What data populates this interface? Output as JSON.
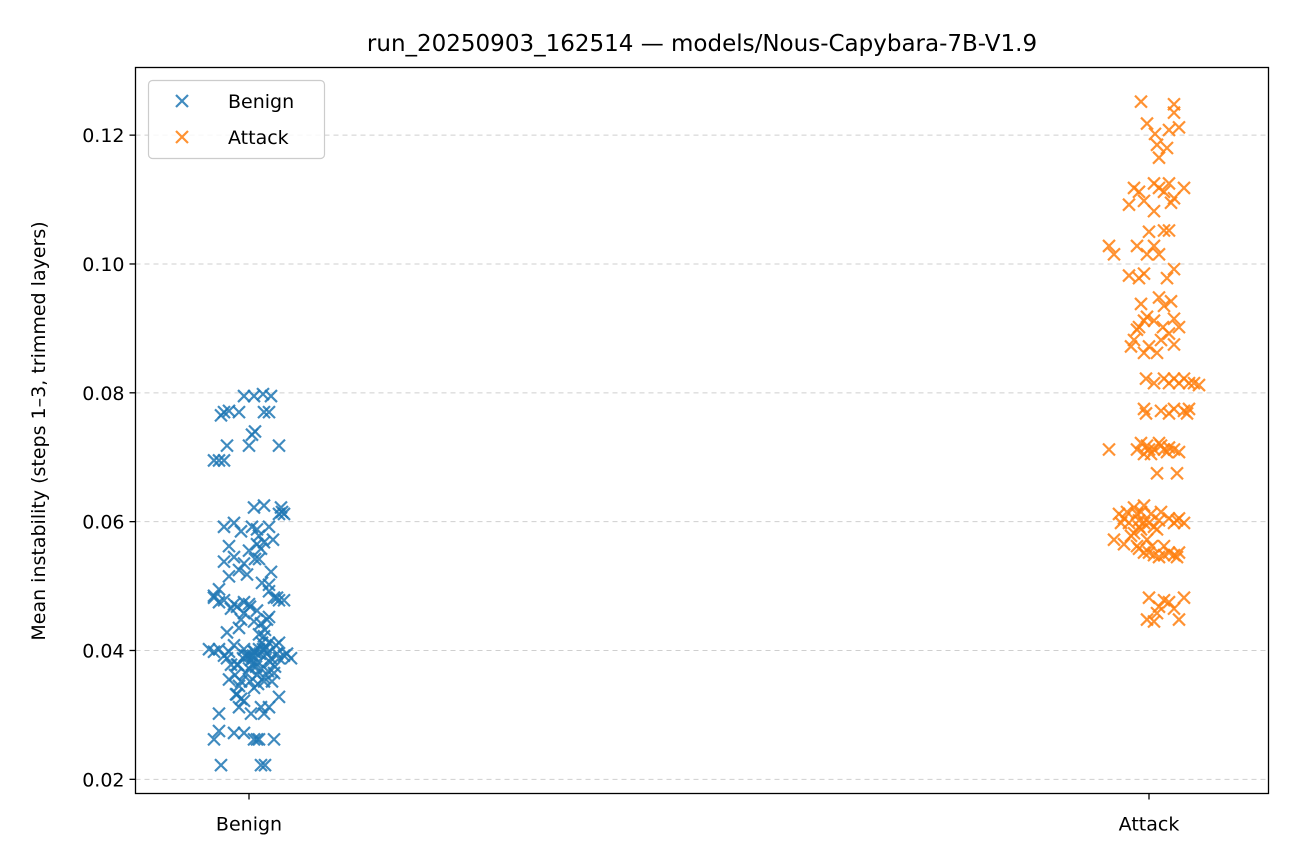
{
  "chart_data": {
    "type": "scatter",
    "title": "run_20250903_162514 — models/Nous-Capybara-7B-V1.9",
    "xlabel": "",
    "ylabel": "Mean instability (steps 1–3, trimmed layers)",
    "ylim": [
      0.0178,
      0.1305
    ],
    "yticks": [
      "0.02",
      "0.04",
      "0.06",
      "0.08",
      "0.10",
      "0.12"
    ],
    "categories": [
      "Benign",
      "Attack"
    ],
    "grid": "horizontal dashed",
    "legend_position": "top-left",
    "marker": "x",
    "series": [
      {
        "name": "Benign",
        "category_index": 0,
        "color": "#1f77b4",
        "points": [
          [
            0.05,
            0.0398
          ],
          [
            -0.12,
            0.0378
          ],
          [
            0.02,
            0.0385
          ],
          [
            0.18,
            0.0395
          ],
          [
            -0.05,
            0.0402
          ],
          [
            0.22,
            0.0388
          ],
          [
            0.08,
            0.0362
          ],
          [
            -0.15,
            0.0408
          ],
          [
            0.12,
            0.0372
          ],
          [
            -0.02,
            0.0392
          ],
          [
            0.28,
            0.0395
          ],
          [
            -0.2,
            0.0398
          ],
          [
            0.15,
            0.0352
          ],
          [
            0.0,
            0.0372
          ],
          [
            0.1,
            0.0402
          ],
          [
            -0.08,
            0.0352
          ],
          [
            0.2,
            0.0412
          ],
          [
            -0.25,
            0.0392
          ],
          [
            0.3,
            0.0388
          ],
          [
            0.03,
            0.0378
          ],
          [
            -0.1,
            0.0345
          ],
          [
            0.25,
            0.0365
          ],
          [
            -0.3,
            0.0402
          ],
          [
            0.07,
            0.0375
          ],
          [
            0.14,
            0.0402
          ],
          [
            0.01,
            0.0352
          ],
          [
            -0.18,
            0.0378
          ],
          [
            0.19,
            0.0368
          ],
          [
            -0.04,
            0.0392
          ],
          [
            0.09,
            0.0382
          ],
          [
            0.35,
            0.0392
          ],
          [
            -0.22,
            0.0388
          ],
          [
            0.16,
            0.0402
          ],
          [
            0.04,
            0.0392
          ],
          [
            0.23,
            0.0352
          ],
          [
            -0.14,
            0.0362
          ],
          [
            0.11,
            0.0395
          ],
          [
            -0.06,
            0.0388
          ],
          [
            0.26,
            0.0375
          ],
          [
            0.06,
            0.0398
          ],
          [
            -0.4,
            0.0402
          ],
          [
            0.42,
            0.0388
          ],
          [
            0.38,
            0.0395
          ],
          [
            -0.35,
            0.0398
          ],
          [
            0.13,
            0.0412
          ],
          [
            -0.03,
            0.0365
          ],
          [
            0.21,
            0.0382
          ],
          [
            0.0,
            0.0392
          ],
          [
            -0.13,
            0.0332
          ],
          [
            0.17,
            0.0405
          ],
          [
            0.05,
            0.0342
          ],
          [
            -0.08,
            0.0325
          ],
          [
            0.15,
            0.0358
          ],
          [
            0.3,
            0.0412
          ],
          [
            -0.2,
            0.0355
          ],
          [
            0.27,
            0.0408
          ],
          [
            0.09,
            0.0348
          ],
          [
            -0.11,
            0.0378
          ],
          [
            -0.15,
            0.0472
          ],
          [
            -0.05,
            0.0458
          ],
          [
            0.05,
            0.0445
          ],
          [
            0.15,
            0.0422
          ],
          [
            -0.1,
            0.0435
          ],
          [
            0.18,
            0.0448
          ],
          [
            0.08,
            0.0462
          ],
          [
            -0.25,
            0.0478
          ],
          [
            0.25,
            0.0482
          ],
          [
            0.0,
            0.0472
          ],
          [
            -0.08,
            0.0448
          ],
          [
            0.12,
            0.0442
          ],
          [
            -0.18,
            0.0465
          ],
          [
            0.2,
            0.0452
          ],
          [
            0.35,
            0.0478
          ],
          [
            0.01,
            0.0468
          ],
          [
            0.1,
            0.0425
          ],
          [
            -0.22,
            0.0428
          ],
          [
            -0.3,
            0.0475
          ],
          [
            0.28,
            0.0482
          ],
          [
            -0.05,
            0.0475
          ],
          [
            0.16,
            0.0432
          ],
          [
            -0.35,
            0.0482
          ],
          [
            -0.12,
            0.0468
          ],
          [
            0.1,
            0.0542
          ],
          [
            0.0,
            0.0555
          ],
          [
            -0.1,
            0.0525
          ],
          [
            0.22,
            0.0522
          ],
          [
            0.06,
            0.0542
          ],
          [
            0.15,
            0.0568
          ],
          [
            -0.05,
            0.0535
          ],
          [
            0.2,
            0.0502
          ],
          [
            -0.15,
            0.0545
          ],
          [
            0.1,
            0.0578
          ],
          [
            -0.3,
            0.0495
          ],
          [
            -0.2,
            0.0515
          ],
          [
            -0.25,
            0.0538
          ],
          [
            -0.35,
            0.0485
          ],
          [
            0.12,
            0.0558
          ],
          [
            0.08,
            0.0565
          ],
          [
            -0.08,
            0.0585
          ],
          [
            0.03,
            0.0592
          ],
          [
            0.3,
            0.0612
          ],
          [
            0.33,
            0.0615
          ],
          [
            0.15,
            0.0625
          ],
          [
            0.05,
            0.0622
          ],
          [
            0.2,
            0.0592
          ],
          [
            -0.25,
            0.0592
          ],
          [
            -0.15,
            0.0598
          ],
          [
            0.32,
            0.0622
          ],
          [
            -0.2,
            0.0562
          ],
          [
            0.13,
            0.0505
          ],
          [
            0.24,
            0.0572
          ],
          [
            -0.02,
            0.0518
          ],
          [
            0.3,
            0.0478
          ],
          [
            0.2,
            0.0492
          ],
          [
            0.35,
            0.0612
          ],
          [
            0.08,
            0.0588
          ],
          [
            -0.1,
            0.0312
          ],
          [
            0.02,
            0.0302
          ],
          [
            0.12,
            0.0312
          ],
          [
            -0.05,
            0.0272
          ],
          [
            0.08,
            0.0262
          ],
          [
            0.25,
            0.0262
          ],
          [
            -0.15,
            0.0272
          ],
          [
            -0.35,
            0.0262
          ],
          [
            -0.3,
            0.0275
          ],
          [
            0.2,
            0.0312
          ],
          [
            0.15,
            0.0302
          ],
          [
            0.3,
            0.0328
          ],
          [
            0.1,
            0.0262
          ],
          [
            -0.05,
            0.0322
          ],
          [
            0.12,
            0.0222
          ],
          [
            -0.3,
            0.0302
          ],
          [
            0.16,
            0.0222
          ],
          [
            -0.28,
            0.0222
          ],
          [
            0.05,
            0.0262
          ],
          [
            -0.12,
            0.0332
          ],
          [
            -0.3,
            0.0695
          ],
          [
            -0.35,
            0.0695
          ],
          [
            -0.25,
            0.0695
          ],
          [
            -0.22,
            0.0718
          ],
          [
            0.0,
            0.0718
          ],
          [
            0.03,
            0.0735
          ],
          [
            0.06,
            0.074
          ],
          [
            0.3,
            0.0718
          ],
          [
            -0.25,
            0.077
          ],
          [
            -0.1,
            0.077
          ],
          [
            -0.28,
            0.0765
          ],
          [
            0.15,
            0.077
          ],
          [
            0.2,
            0.077
          ],
          [
            0.22,
            0.0795
          ],
          [
            -0.05,
            0.0795
          ],
          [
            0.05,
            0.0795
          ],
          [
            0.14,
            0.0798
          ],
          [
            -0.2,
            0.0772
          ]
        ]
      },
      {
        "name": "Attack",
        "category_index": 1,
        "color": "#ff7f0e",
        "points": [
          [
            -0.08,
            0.1252
          ],
          [
            0.25,
            0.1248
          ],
          [
            0.25,
            0.1235
          ],
          [
            0.3,
            0.1212
          ],
          [
            0.2,
            0.1208
          ],
          [
            0.18,
            0.118
          ],
          [
            0.1,
            0.1165
          ],
          [
            0.08,
            0.1185
          ],
          [
            0.06,
            0.1202
          ],
          [
            -0.02,
            0.1218
          ],
          [
            -0.15,
            0.1118
          ],
          [
            0.25,
            0.1102
          ],
          [
            0.35,
            0.1118
          ],
          [
            0.1,
            0.1118
          ],
          [
            0.05,
            0.1125
          ],
          [
            0.15,
            0.1112
          ],
          [
            0.2,
            0.1125
          ],
          [
            0.22,
            0.1095
          ],
          [
            -0.1,
            0.1112
          ],
          [
            -0.05,
            0.1098
          ],
          [
            -0.2,
            0.1092
          ],
          [
            -0.4,
            0.1028
          ],
          [
            -0.35,
            0.1015
          ],
          [
            -0.12,
            0.1028
          ],
          [
            -0.02,
            0.1015
          ],
          [
            0.05,
            0.1028
          ],
          [
            0.15,
            0.1052
          ],
          [
            0.25,
            0.0992
          ],
          [
            -0.2,
            0.0982
          ],
          [
            -0.1,
            0.0978
          ],
          [
            -0.05,
            0.0985
          ],
          [
            0.0,
            0.105
          ],
          [
            0.1,
            0.1015
          ],
          [
            0.2,
            0.1052
          ],
          [
            0.18,
            0.0978
          ],
          [
            0.05,
            0.1082
          ],
          [
            -0.08,
            0.0938
          ],
          [
            -0.02,
            0.0918
          ],
          [
            0.1,
            0.0948
          ],
          [
            0.25,
            0.0915
          ],
          [
            0.3,
            0.0902
          ],
          [
            0.2,
            0.0892
          ],
          [
            0.15,
            0.0935
          ],
          [
            -0.12,
            0.0898
          ],
          [
            -0.18,
            0.0872
          ],
          [
            -0.05,
            0.0862
          ],
          [
            -0.1,
            0.0902
          ],
          [
            0.0,
            0.0872
          ],
          [
            0.05,
            0.0912
          ],
          [
            0.12,
            0.0882
          ],
          [
            0.25,
            0.0875
          ],
          [
            0.08,
            0.0862
          ],
          [
            0.14,
            0.0902
          ],
          [
            -0.15,
            0.0882
          ],
          [
            0.22,
            0.0942
          ],
          [
            -0.05,
            0.0912
          ],
          [
            -0.03,
            0.0822
          ],
          [
            0.05,
            0.0815
          ],
          [
            0.2,
            0.0815
          ],
          [
            0.35,
            0.0822
          ],
          [
            0.3,
            0.0815
          ],
          [
            0.25,
            0.0822
          ],
          [
            0.4,
            0.0815
          ],
          [
            0.45,
            0.0815
          ],
          [
            0.5,
            0.0812
          ],
          [
            0.15,
            0.0822
          ],
          [
            -0.05,
            0.0775
          ],
          [
            0.12,
            0.0772
          ],
          [
            0.2,
            0.0768
          ],
          [
            0.35,
            0.0772
          ],
          [
            0.4,
            0.0775
          ],
          [
            -0.03,
            0.0768
          ],
          [
            0.25,
            0.0775
          ],
          [
            0.38,
            0.0768
          ],
          [
            -0.4,
            0.0712
          ],
          [
            -0.08,
            0.0722
          ],
          [
            -0.02,
            0.0718
          ],
          [
            0.05,
            0.0712
          ],
          [
            0.1,
            0.0722
          ],
          [
            0.15,
            0.0712
          ],
          [
            0.2,
            0.0715
          ],
          [
            0.0,
            0.0712
          ],
          [
            0.18,
            0.0708
          ],
          [
            0.25,
            0.0712
          ],
          [
            0.3,
            0.0708
          ],
          [
            -0.05,
            0.0705
          ],
          [
            0.12,
            0.0718
          ],
          [
            0.08,
            0.0675
          ],
          [
            0.02,
            0.0705
          ],
          [
            -0.12,
            0.0712
          ],
          [
            0.28,
            0.0675
          ],
          [
            -0.25,
            0.0605
          ],
          [
            -0.22,
            0.0615
          ],
          [
            -0.2,
            0.0598
          ],
          [
            -0.15,
            0.0622
          ],
          [
            -0.12,
            0.0612
          ],
          [
            -0.1,
            0.0602
          ],
          [
            -0.08,
            0.0615
          ],
          [
            -0.05,
            0.0625
          ],
          [
            0.0,
            0.0598
          ],
          [
            0.05,
            0.0592
          ],
          [
            0.1,
            0.0602
          ],
          [
            0.12,
            0.0615
          ],
          [
            0.2,
            0.0605
          ],
          [
            0.25,
            0.0598
          ],
          [
            0.28,
            0.0602
          ],
          [
            -0.3,
            0.0612
          ],
          [
            -0.28,
            0.0598
          ],
          [
            -0.18,
            0.0578
          ],
          [
            -0.15,
            0.0582
          ],
          [
            -0.1,
            0.0592
          ],
          [
            -0.05,
            0.0598
          ],
          [
            0.02,
            0.0612
          ],
          [
            0.08,
            0.0588
          ],
          [
            0.15,
            0.0562
          ],
          [
            -0.02,
            0.0572
          ],
          [
            -0.12,
            0.0562
          ],
          [
            0.3,
            0.0605
          ],
          [
            0.35,
            0.0598
          ],
          [
            -0.08,
            0.0588
          ],
          [
            0.0,
            0.0552
          ],
          [
            0.05,
            0.0548
          ],
          [
            0.1,
            0.0545
          ],
          [
            0.15,
            0.0548
          ],
          [
            0.2,
            0.0552
          ],
          [
            0.25,
            0.0548
          ],
          [
            0.28,
            0.0545
          ],
          [
            -0.05,
            0.0552
          ],
          [
            -0.1,
            0.0558
          ],
          [
            0.03,
            0.0562
          ],
          [
            -0.35,
            0.0572
          ],
          [
            -0.25,
            0.0565
          ],
          [
            0.3,
            0.0552
          ],
          [
            0.0,
            0.0482
          ],
          [
            -0.02,
            0.0448
          ],
          [
            0.05,
            0.0445
          ],
          [
            0.1,
            0.0468
          ],
          [
            0.15,
            0.0478
          ],
          [
            0.2,
            0.0475
          ],
          [
            0.25,
            0.0465
          ],
          [
            0.3,
            0.0448
          ],
          [
            0.35,
            0.0482
          ],
          [
            0.08,
            0.0458
          ]
        ]
      }
    ]
  }
}
